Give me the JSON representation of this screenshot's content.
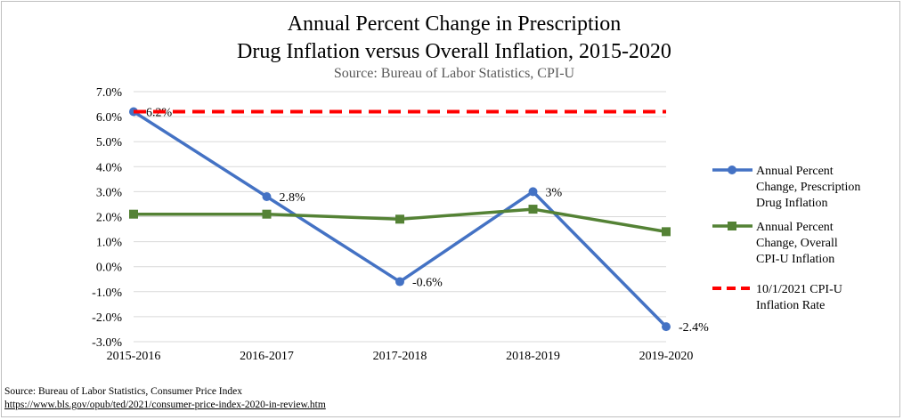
{
  "chart_data": {
    "type": "line",
    "title_line1": "Annual Percent Change in Prescription",
    "title_line2": "Drug Inflation versus Overall Inflation, 2015-2020",
    "subtitle": "Source: Bureau of Labor Statistics, CPI-U",
    "categories": [
      "2015-2016",
      "2016-2017",
      "2017-2018",
      "2018-2019",
      "2019-2020"
    ],
    "ylim": [
      -3.0,
      7.0
    ],
    "yticks": [
      {
        "value": 7,
        "label": "7.0%"
      },
      {
        "value": 6,
        "label": "6.0%"
      },
      {
        "value": 5,
        "label": "5.0%"
      },
      {
        "value": 4,
        "label": "4.0%"
      },
      {
        "value": 3,
        "label": "3.0%"
      },
      {
        "value": 2,
        "label": "2.0%"
      },
      {
        "value": 1,
        "label": "1.0%"
      },
      {
        "value": 0,
        "label": "0.0%"
      },
      {
        "value": -1,
        "label": "-1.0%"
      },
      {
        "value": -2,
        "label": "-2.0%"
      },
      {
        "value": -3,
        "label": "-3.0%"
      }
    ],
    "grid": true,
    "legend_position": "right",
    "series": [
      {
        "name_lines": [
          "Annual Percent",
          "Change, Prescription",
          "Drug Inflation"
        ],
        "values": [
          6.2,
          2.8,
          -0.6,
          3.0,
          -2.4
        ],
        "data_labels": [
          "6.2%",
          "2.8%",
          "-0.6%",
          "3%",
          "-2.4%"
        ],
        "color": "#4472C4",
        "marker": "circle",
        "style": "solid"
      },
      {
        "name_lines": [
          "Annual Percent",
          "Change, Overall",
          "CPI-U Inflation"
        ],
        "values": [
          2.1,
          2.1,
          1.9,
          2.3,
          1.4
        ],
        "color": "#548235",
        "marker": "square",
        "style": "solid"
      },
      {
        "name_lines": [
          "10/1/2021 CPI-U",
          "Inflation Rate"
        ],
        "values": [
          6.2,
          6.2,
          6.2,
          6.2,
          6.2
        ],
        "color": "#FF0000",
        "marker": "none",
        "style": "dashed"
      }
    ]
  },
  "footer": {
    "source": "Source: Bureau of Labor Statistics, Consumer Price Index",
    "url": "https://www.bls.gov/opub/ted/2021/consumer-price-index-2020-in-review.htm"
  }
}
